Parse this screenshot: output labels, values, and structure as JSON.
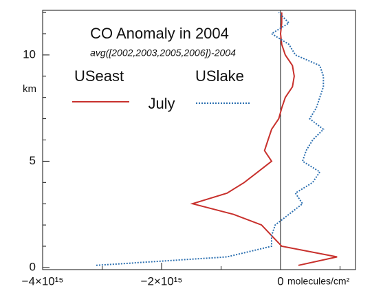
{
  "chart_data": {
    "type": "line",
    "title": "CO Anomaly in 2004",
    "subtitle": "avg([2002,2003,2005,2006])-2004",
    "x_label": "molecules/cm²",
    "y_label": "km",
    "annotation": "July",
    "y": [
      0.1,
      0.5,
      1,
      1.5,
      2,
      2.5,
      3,
      3.5,
      4,
      4.5,
      5,
      5.5,
      6,
      6.5,
      7,
      7.5,
      8,
      8.5,
      9,
      9.5,
      10,
      10.5,
      11,
      11.5,
      12
    ],
    "series": [
      {
        "name": "USeast",
        "color": "#c8302c",
        "dash": "solid",
        "values": [
          300000000000000.0,
          950000000000000.0,
          20000000000000.0,
          -150000000000000.0,
          -320000000000000.0,
          -790000000000000.0,
          -1480000000000000.0,
          -900000000000000.0,
          -610000000000000.0,
          -380000000000000.0,
          -150000000000000.0,
          -270000000000000.0,
          -210000000000000.0,
          -150000000000000.0,
          -30000000000000.0,
          20000000000000.0,
          80000000000000.0,
          200000000000000.0,
          230000000000000.0,
          200000000000000.0,
          80000000000000.0,
          20000000000000.0,
          0,
          20000000000000.0,
          20000000000000.0
        ]
      },
      {
        "name": "USlake",
        "color": "#2b6fb0",
        "dash": "dotted",
        "values": [
          -3100000000000000.0,
          -900000000000000.0,
          -150000000000000.0,
          -150000000000000.0,
          -90000000000000.0,
          140000000000000.0,
          370000000000000.0,
          250000000000000.0,
          540000000000000.0,
          660000000000000.0,
          370000000000000.0,
          430000000000000.0,
          540000000000000.0,
          720000000000000.0,
          490000000000000.0,
          600000000000000.0,
          660000000000000.0,
          720000000000000.0,
          720000000000000.0,
          660000000000000.0,
          250000000000000.0,
          140000000000000.0,
          -150000000000000.0,
          140000000000000.0,
          -30000000000000.0
        ]
      }
    ],
    "xlim": [
      -4000000000000000.0,
      1260000000000000.0
    ],
    "ylim": [
      -0.1,
      12.1
    ],
    "xticks": [
      {
        "value": -4000000000000000.0,
        "label": "−4×10¹⁵"
      },
      {
        "value": -2000000000000000.0,
        "label": "−2×10¹⁵"
      },
      0
    ],
    "xminorticks": [
      -3000000000000000.0,
      -1000000000000000.0,
      1000000000000000.0
    ],
    "yticks": [
      0,
      5,
      10
    ],
    "yminorticks": [
      1,
      2,
      3,
      4,
      6,
      7,
      8,
      9,
      11,
      12
    ],
    "zero_line": true
  }
}
